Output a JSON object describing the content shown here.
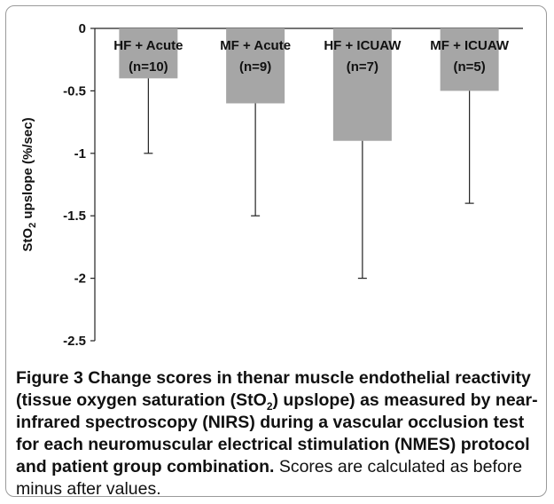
{
  "chart_data": {
    "type": "bar",
    "categories_line1": [
      "HF + Acute",
      "MF + Acute",
      "HF + ICUAW",
      "MF + ICUAW"
    ],
    "categories_line2": [
      "(n=10)",
      "(n=9)",
      "(n=7)",
      "(n=5)"
    ],
    "values": [
      -0.4,
      -0.6,
      -0.9,
      -0.5
    ],
    "error_ends": [
      -1.0,
      -1.5,
      -2.0,
      -1.4
    ],
    "ylabel_pre": "StO",
    "ylabel_sub": "2",
    "ylabel_post": " upslope (%/sec)",
    "ylim": [
      -2.5,
      0
    ],
    "yticks": [
      0,
      -0.5,
      -1,
      -1.5,
      -2,
      -2.5
    ],
    "ytick_labels": [
      "0",
      "-0.5",
      "-1",
      "-1.5",
      "-2",
      "-2.5"
    ],
    "bar_color": "#a6a6a6",
    "grid": false
  },
  "caption": {
    "label": "Figure 3",
    "bold_pre": " Change scores in thenar muscle endothelial reactivity (tissue oxygen saturation (StO",
    "bold_sub": "2",
    "bold_post": ") upslope) as measured by near-infrared spectroscopy (NIRS) during a vascular occlusion test for each neuromuscular electrical stimulation (NMES) protocol and patient group combination.",
    "normal": " Scores are calculated as before minus after values."
  }
}
